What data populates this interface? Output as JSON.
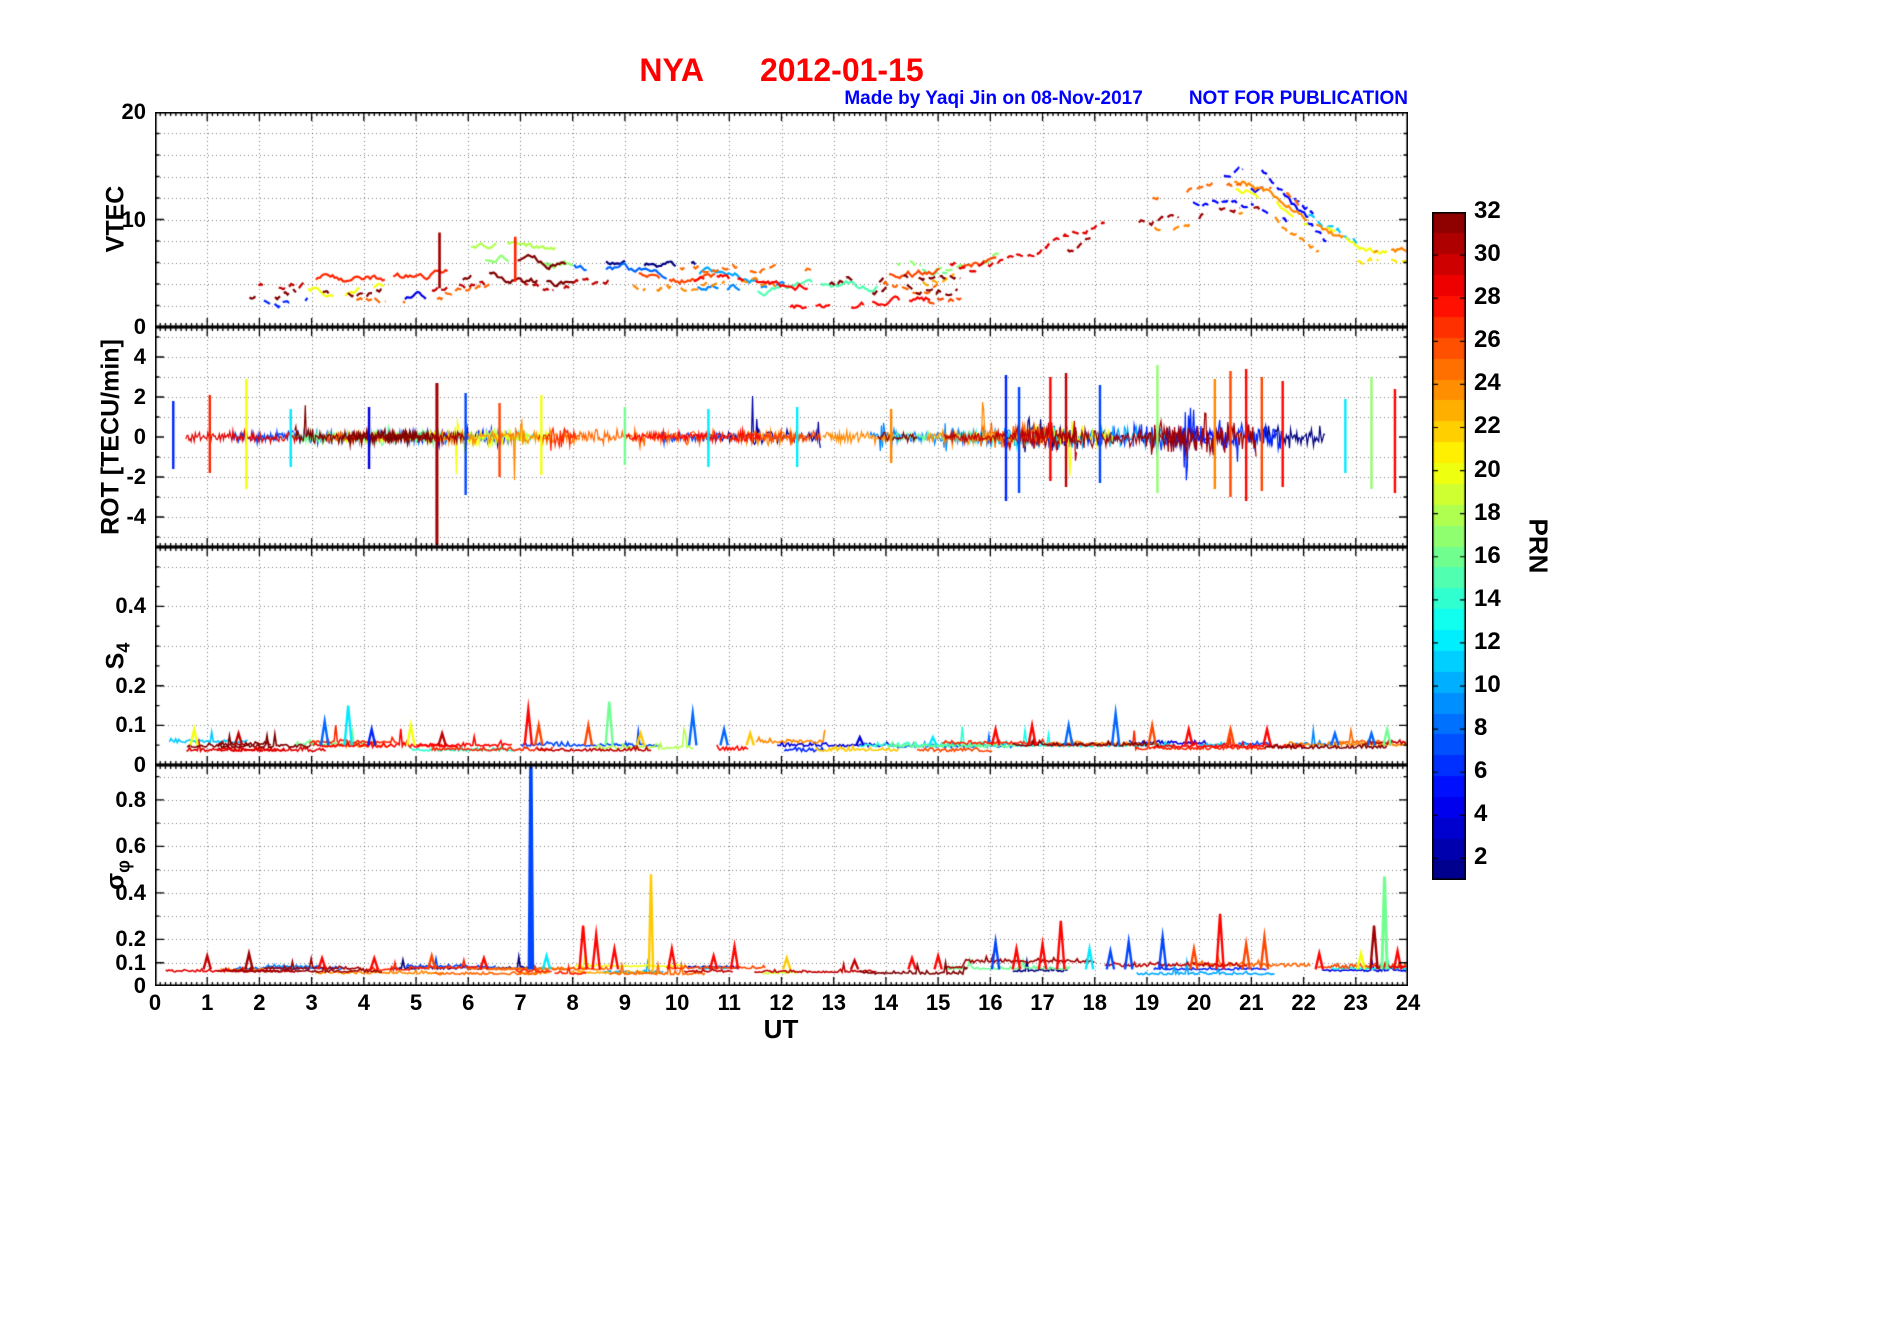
{
  "title": {
    "station": "NYA",
    "date": "2012-01-15",
    "color": "#FF0000"
  },
  "annotations": {
    "made_by": "Made by Yaqi Jin on 08-Nov-2017",
    "disclaimer": "NOT FOR PUBLICATION",
    "color": "#0000FF"
  },
  "chart_data": {
    "type": "line",
    "title": "NYA 2012-01-15",
    "subtitle": "GPS TEC and scintillation indices vs universal time, one colored trace per satellite PRN",
    "xlabel": "UT",
    "x_range": [
      0,
      24
    ],
    "x_ticks": [
      0,
      1,
      2,
      3,
      4,
      5,
      6,
      7,
      8,
      9,
      10,
      11,
      12,
      13,
      14,
      15,
      16,
      17,
      18,
      19,
      20,
      21,
      22,
      23,
      24
    ],
    "grid": true,
    "colorbar": {
      "label": "PRN",
      "colormap": "jet",
      "range": [
        1,
        32
      ],
      "ticks": [
        2,
        4,
        6,
        8,
        10,
        12,
        14,
        16,
        18,
        20,
        22,
        24,
        26,
        28,
        30,
        32
      ]
    },
    "panels": [
      {
        "id": "vtec",
        "ylabel": "VTEC",
        "ylim": [
          0,
          20
        ],
        "yticks": [
          0,
          10,
          20
        ],
        "y_minor": 2,
        "grid_y": [
          2,
          4,
          6,
          8,
          10,
          12,
          14,
          16,
          18
        ],
        "description": "Broken multi-satellite VTEC arcs: quiet 2-8 TECU from 0-16 UT, enhancement rising to 10-16 TECU between 17 and 22 UT, decreasing after 22 UT",
        "envelope": [
          [
            0,
            3.5
          ],
          [
            3,
            4
          ],
          [
            5,
            4.5
          ],
          [
            6,
            5.5
          ],
          [
            7,
            5
          ],
          [
            9,
            4.5
          ],
          [
            11,
            4
          ],
          [
            13,
            4
          ],
          [
            15,
            4.5
          ],
          [
            16,
            5.5
          ],
          [
            17,
            7
          ],
          [
            18,
            9
          ],
          [
            19,
            11
          ],
          [
            20,
            12
          ],
          [
            20.8,
            12.5
          ],
          [
            21.5,
            10
          ],
          [
            22.5,
            7
          ],
          [
            23.5,
            6
          ],
          [
            24,
            6
          ]
        ],
        "spread": 2.2,
        "noise": 0.25,
        "n_arcs": 46,
        "seed": 11,
        "linewidth": 2.2,
        "spikes": [
          {
            "x": 5.45,
            "lo": 3.6,
            "hi": 8.8,
            "prn": 31,
            "lw": 2.6
          },
          {
            "x": 6.9,
            "lo": 4.2,
            "hi": 8.4,
            "prn": 27,
            "lw": 2.6
          }
        ]
      },
      {
        "id": "rot",
        "ylabel": "ROT [TECU/min]",
        "ylim": [
          -5.5,
          5.5
        ],
        "yticks": [
          -4,
          -2,
          0,
          2,
          4
        ],
        "y_minor": 1,
        "grid_y": [
          -5,
          -4,
          -3,
          -2,
          -1,
          1,
          2,
          3,
          4,
          5
        ],
        "description": "Rate of TEC change: noise band about +/-0.5 TECU/min all day, large dark-red negative spike to -5 near 05:24 UT, enhanced colorful fluctuations up to +/-3 from 16 to 24 UT",
        "noise": 0.33,
        "n_arcs": 42,
        "seed": 23,
        "linewidth": 1.2,
        "activity": [
          [
            0,
            1
          ],
          [
            15,
            1
          ],
          [
            16,
            1.7
          ],
          [
            17,
            2.0
          ],
          [
            19,
            2.1
          ],
          [
            20,
            2.4
          ],
          [
            21,
            2.4
          ],
          [
            22,
            1.7
          ],
          [
            23,
            2.1
          ],
          [
            24,
            2.0
          ]
        ],
        "spikes": [
          {
            "x": 0.35,
            "lo": -1.6,
            "hi": 1.8,
            "prn": 6
          },
          {
            "x": 1.05,
            "lo": -1.8,
            "hi": 2.1,
            "prn": 27
          },
          {
            "x": 1.75,
            "lo": -2.6,
            "hi": 2.9,
            "prn": 20
          },
          {
            "x": 2.6,
            "lo": -1.5,
            "hi": 1.4,
            "prn": 12
          },
          {
            "x": 4.1,
            "lo": -1.6,
            "hi": 1.5,
            "prn": 4
          },
          {
            "x": 5.4,
            "lo": -5.4,
            "hi": 2.7,
            "prn": 31,
            "lw": 3
          },
          {
            "x": 5.95,
            "lo": -2.9,
            "hi": 2.2,
            "prn": 7
          },
          {
            "x": 6.6,
            "lo": -2.0,
            "hi": 1.7,
            "prn": 26
          },
          {
            "x": 7.4,
            "lo": -1.9,
            "hi": 2.1,
            "prn": 20
          },
          {
            "x": 9.0,
            "lo": -1.4,
            "hi": 1.5,
            "prn": 16
          },
          {
            "x": 10.6,
            "lo": -1.5,
            "hi": 1.4,
            "prn": 12
          },
          {
            "x": 12.3,
            "lo": -1.5,
            "hi": 1.5,
            "prn": 12
          },
          {
            "x": 14.1,
            "lo": -1.3,
            "hi": 1.4,
            "prn": 24
          },
          {
            "x": 16.3,
            "lo": -3.2,
            "hi": 3.1,
            "prn": 6
          },
          {
            "x": 16.55,
            "lo": -2.8,
            "hi": 2.5,
            "prn": 7
          },
          {
            "x": 17.15,
            "lo": -2.2,
            "hi": 3.0,
            "prn": 28
          },
          {
            "x": 17.45,
            "lo": -2.5,
            "hi": 3.2,
            "prn": 30
          },
          {
            "x": 18.1,
            "lo": -2.3,
            "hi": 2.6,
            "prn": 7
          },
          {
            "x": 19.2,
            "lo": -2.8,
            "hi": 3.6,
            "prn": 17
          },
          {
            "x": 20.3,
            "lo": -2.6,
            "hi": 2.9,
            "prn": 24
          },
          {
            "x": 20.6,
            "lo": -3.0,
            "hi": 3.3,
            "prn": 26
          },
          {
            "x": 20.9,
            "lo": -3.2,
            "hi": 3.4,
            "prn": 28
          },
          {
            "x": 21.2,
            "lo": -2.7,
            "hi": 3.0,
            "prn": 26
          },
          {
            "x": 21.6,
            "lo": -2.5,
            "hi": 2.8,
            "prn": 28
          },
          {
            "x": 22.8,
            "lo": -1.8,
            "hi": 1.9,
            "prn": 12
          },
          {
            "x": 23.3,
            "lo": -2.6,
            "hi": 3.0,
            "prn": 17
          },
          {
            "x": 23.75,
            "lo": -2.8,
            "hi": 2.4,
            "prn": 28
          }
        ]
      },
      {
        "id": "s4",
        "ylabel_main": "S",
        "ylabel_sub": "4",
        "ylim": [
          0,
          0.55
        ],
        "yticks": [
          0,
          0.1,
          0.2,
          0.4
        ],
        "y_minor": 0.05,
        "grid_y": [
          0.1,
          0.2,
          0.3,
          0.4,
          0.5
        ],
        "description": "Amplitude scintillation index: mostly below 0.08 with isolated peaks up to about 0.16",
        "base": 0.045,
        "noise": 0.012,
        "n_arcs": 40,
        "seed": 37,
        "linewidth": 1.6,
        "spikes": [
          {
            "x": 0.75,
            "v": 0.09,
            "prn": 20
          },
          {
            "x": 1.6,
            "v": 0.08,
            "prn": 30
          },
          {
            "x": 3.25,
            "v": 0.11,
            "prn": 8
          },
          {
            "x": 3.7,
            "v": 0.15,
            "prn": 12
          },
          {
            "x": 4.15,
            "v": 0.09,
            "prn": 6
          },
          {
            "x": 4.9,
            "v": 0.1,
            "prn": 20
          },
          {
            "x": 5.5,
            "v": 0.08,
            "prn": 30
          },
          {
            "x": 7.15,
            "v": 0.14,
            "prn": 28
          },
          {
            "x": 7.35,
            "v": 0.1,
            "prn": 26
          },
          {
            "x": 8.3,
            "v": 0.1,
            "prn": 26
          },
          {
            "x": 8.7,
            "v": 0.16,
            "prn": 16
          },
          {
            "x": 9.3,
            "v": 0.08,
            "prn": 22
          },
          {
            "x": 10.3,
            "v": 0.13,
            "prn": 8
          },
          {
            "x": 10.9,
            "v": 0.09,
            "prn": 8
          },
          {
            "x": 11.4,
            "v": 0.08,
            "prn": 22
          },
          {
            "x": 13.5,
            "v": 0.07,
            "prn": 4
          },
          {
            "x": 14.9,
            "v": 0.07,
            "prn": 12
          },
          {
            "x": 16.1,
            "v": 0.09,
            "prn": 28
          },
          {
            "x": 16.8,
            "v": 0.1,
            "prn": 28
          },
          {
            "x": 17.5,
            "v": 0.1,
            "prn": 8
          },
          {
            "x": 18.4,
            "v": 0.13,
            "prn": 8
          },
          {
            "x": 19.1,
            "v": 0.1,
            "prn": 26
          },
          {
            "x": 19.8,
            "v": 0.09,
            "prn": 28
          },
          {
            "x": 20.6,
            "v": 0.09,
            "prn": 26
          },
          {
            "x": 21.3,
            "v": 0.09,
            "prn": 28
          },
          {
            "x": 22.6,
            "v": 0.08,
            "prn": 8
          },
          {
            "x": 23.3,
            "v": 0.08,
            "prn": 8
          },
          {
            "x": 23.6,
            "v": 0.09,
            "prn": 16
          }
        ]
      },
      {
        "id": "sigma_phi",
        "ylabel_main": "σ",
        "ylabel_sub": "φ",
        "ylim": [
          0,
          0.95
        ],
        "yticks": [
          0,
          0.1,
          0.2,
          0.4,
          0.6,
          0.8
        ],
        "y_minor": 0.1,
        "grid_y": [
          0.1,
          0.2,
          0.3,
          0.4,
          0.5,
          0.6,
          0.7,
          0.8,
          0.9
        ],
        "description": "Phase scintillation index: baseline about 0.07 rad; full-scale blue spike to ~0.95 near 07:12 UT, orange spike 0.48 near 09:30 UT, green spike 0.47 near 23:33 UT, enhanced red activity 16-22 UT",
        "base": 0.065,
        "noise": 0.013,
        "n_arcs": 40,
        "seed": 53,
        "linewidth": 1.6,
        "spikes": [
          {
            "x": 1.0,
            "v": 0.13,
            "prn": 30
          },
          {
            "x": 1.8,
            "v": 0.14,
            "prn": 31
          },
          {
            "x": 3.2,
            "v": 0.12,
            "prn": 28
          },
          {
            "x": 4.2,
            "v": 0.12,
            "prn": 28
          },
          {
            "x": 5.3,
            "v": 0.13,
            "prn": 26
          },
          {
            "x": 6.3,
            "v": 0.12,
            "prn": 28
          },
          {
            "x": 7.2,
            "v": 0.97,
            "prn": 7,
            "w": 0.03,
            "lw": 3.4
          },
          {
            "x": 7.5,
            "v": 0.13,
            "prn": 12
          },
          {
            "x": 8.2,
            "v": 0.26,
            "prn": 28
          },
          {
            "x": 8.45,
            "v": 0.22,
            "prn": 28
          },
          {
            "x": 8.8,
            "v": 0.16,
            "prn": 28
          },
          {
            "x": 9.5,
            "v": 0.48,
            "prn": 22,
            "w": 0.04
          },
          {
            "x": 9.9,
            "v": 0.16,
            "prn": 28
          },
          {
            "x": 10.7,
            "v": 0.13,
            "prn": 28
          },
          {
            "x": 11.1,
            "v": 0.17,
            "prn": 28
          },
          {
            "x": 12.1,
            "v": 0.12,
            "prn": 22
          },
          {
            "x": 13.4,
            "v": 0.11,
            "prn": 30
          },
          {
            "x": 14.5,
            "v": 0.12,
            "prn": 28
          },
          {
            "x": 15.0,
            "v": 0.13,
            "prn": 28
          },
          {
            "x": 16.1,
            "v": 0.19,
            "prn": 7
          },
          {
            "x": 16.5,
            "v": 0.16,
            "prn": 28
          },
          {
            "x": 17.0,
            "v": 0.18,
            "prn": 28
          },
          {
            "x": 17.35,
            "v": 0.28,
            "prn": 28
          },
          {
            "x": 17.9,
            "v": 0.16,
            "prn": 12
          },
          {
            "x": 18.3,
            "v": 0.15,
            "prn": 7
          },
          {
            "x": 18.65,
            "v": 0.19,
            "prn": 7
          },
          {
            "x": 19.3,
            "v": 0.21,
            "prn": 7
          },
          {
            "x": 19.9,
            "v": 0.16,
            "prn": 26
          },
          {
            "x": 20.4,
            "v": 0.31,
            "prn": 28
          },
          {
            "x": 20.9,
            "v": 0.18,
            "prn": 26
          },
          {
            "x": 21.25,
            "v": 0.21,
            "prn": 26
          },
          {
            "x": 22.3,
            "v": 0.14,
            "prn": 28
          },
          {
            "x": 23.1,
            "v": 0.14,
            "prn": 20
          },
          {
            "x": 23.35,
            "v": 0.26,
            "prn": 31
          },
          {
            "x": 23.55,
            "v": 0.47,
            "prn": 16,
            "w": 0.05,
            "lw": 3
          },
          {
            "x": 23.8,
            "v": 0.15,
            "prn": 28
          }
        ]
      }
    ]
  }
}
